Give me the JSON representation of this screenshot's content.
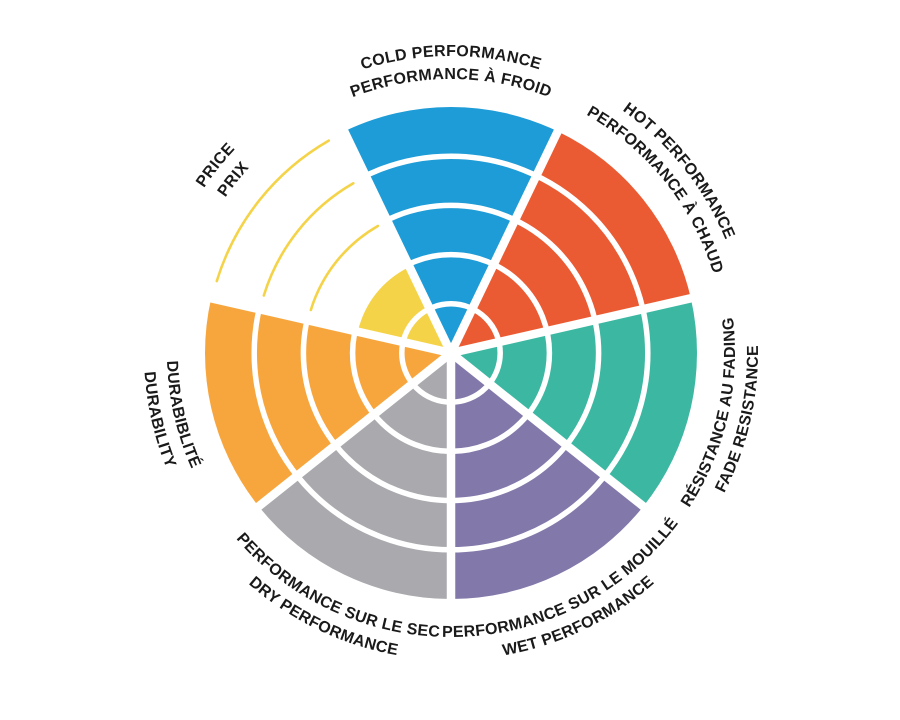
{
  "page": {
    "background": "#FFFFFF",
    "description": "Brake pad performance rating wheel, 7 bilingual categories rated on 5 concentric bands"
  },
  "chart_data": {
    "type": "polar-sector-rating",
    "bands": 5,
    "max_value": 5,
    "direction": "clockwise",
    "first_category_centered_at_top": true,
    "background": "#FFFFFF",
    "divider_color": "#FFFFFF",
    "label_color": "#1A1A1A",
    "categories": [
      {
        "id": "cold-performance",
        "lines": [
          "COLD PERFORMANCE",
          "PERFORMANCE À FROID"
        ],
        "value": 5,
        "color": "#1E9CD7"
      },
      {
        "id": "hot-performance",
        "lines": [
          "HOT PERFORMANCE",
          "PERFORMANCE À CHAUD"
        ],
        "value": 5,
        "color": "#EA5B33"
      },
      {
        "id": "fade-resistance",
        "lines": [
          "RÉSISTANCE AU FADING",
          "FADE RESISTANCE"
        ],
        "value": 5,
        "color": "#3CB8A2"
      },
      {
        "id": "wet-performance",
        "lines": [
          "PERFORMANCE SUR LE MOUILLÉ",
          "WET PERFORMANCE"
        ],
        "value": 5,
        "color": "#8278AA"
      },
      {
        "id": "dry-performance",
        "lines": [
          "PERFORMANCE SUR LE SEC",
          "DRY PERFORMANCE"
        ],
        "value": 5,
        "color": "#A9A9AE"
      },
      {
        "id": "durability",
        "lines": [
          "DURABIBLITÉ",
          "DURABILITY"
        ],
        "value": 5,
        "color": "#F7A63E"
      },
      {
        "id": "price",
        "lines": [
          "PRICE",
          "PRIX"
        ],
        "value": 2,
        "color": "#F5D348"
      }
    ]
  }
}
